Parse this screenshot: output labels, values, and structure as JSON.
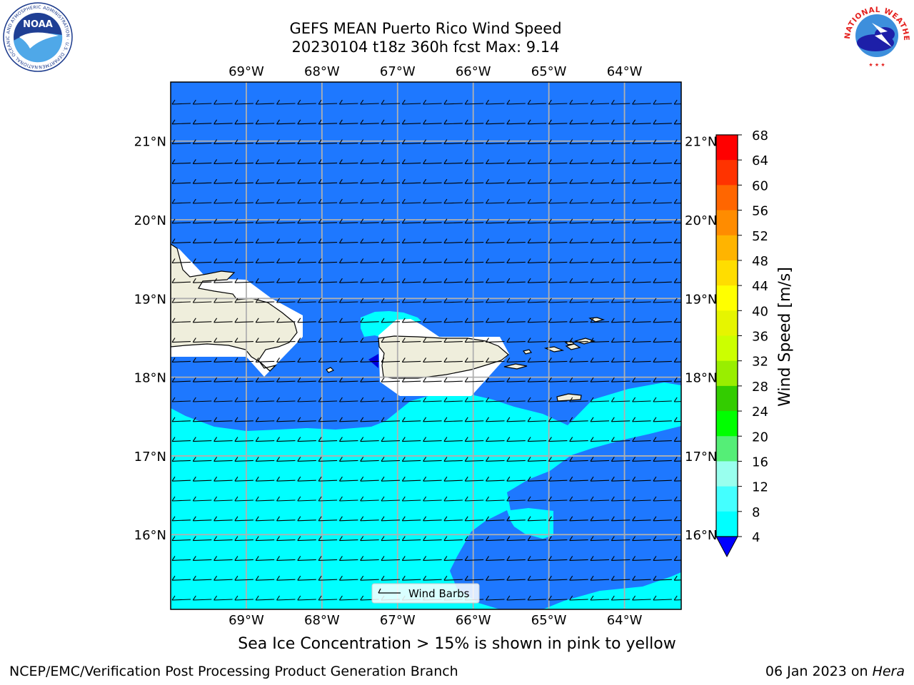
{
  "title": {
    "line1": "GEFS MEAN Puerto Rico Wind Speed",
    "line2": "20230104 t18z 360h fcst   Max: 9.14"
  },
  "map": {
    "lon_labels": [
      "69°W",
      "68°W",
      "67°W",
      "66°W",
      "65°W",
      "64°W"
    ],
    "lat_labels": [
      "21°N",
      "20°N",
      "19°N",
      "18°N",
      "17°N",
      "16°N"
    ],
    "lon_range": [
      -70.0,
      -63.25
    ],
    "lat_range": [
      15.05,
      21.75
    ],
    "legend_label": "Wind Barbs",
    "note": "Sea Ice Concentration > 15% is shown in pink to yellow"
  },
  "colorbar": {
    "label": "Wind Speed [m/s]",
    "ticks": [
      "68",
      "64",
      "60",
      "56",
      "52",
      "48",
      "44",
      "40",
      "36",
      "32",
      "28",
      "24",
      "20",
      "16",
      "12",
      "8",
      "4"
    ],
    "colors": [
      "#ff0000",
      "#ff3300",
      "#ff6600",
      "#ff8c00",
      "#ffb400",
      "#ffdd00",
      "#ffff00",
      "#e6f500",
      "#ccff00",
      "#99ee00",
      "#33cc00",
      "#00ff00",
      "#55ee77",
      "#99ffee",
      "#44ffff",
      "#00ffff",
      "#1e78ff",
      "#0000ff"
    ],
    "extend_color": "#0000ff"
  },
  "colors": {
    "wind_4_8": "#1e78ff",
    "wind_8_12": "#00ffff",
    "land": "#efeedc",
    "grid": "#b0b0b0"
  },
  "footer": {
    "left": "NCEP/EMC/Verification Post Processing Product Generation Branch",
    "date": "06 Jan 2023 on ",
    "machine": "Hera"
  },
  "logos": {
    "noaa_text": "NOAA",
    "noaa_ring": "NATIONAL OCEANIC AND ATMOSPHERIC ADMINISTRATION · U.S. DEPARTMENT OF COMMERCE",
    "nws_ring": "NATIONAL WEATHER SERVICE"
  }
}
